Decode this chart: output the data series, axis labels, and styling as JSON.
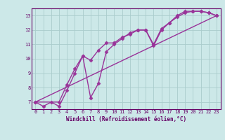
{
  "bg_color": "#cce8e8",
  "grid_color": "#aacccc",
  "line_color": "#993399",
  "xlabel": "Windchill (Refroidissement éolien,°C)",
  "xlim": [
    -0.5,
    23.5
  ],
  "ylim": [
    6.5,
    13.5
  ],
  "xticks": [
    0,
    1,
    2,
    3,
    4,
    5,
    6,
    7,
    8,
    9,
    10,
    11,
    12,
    13,
    14,
    15,
    16,
    17,
    18,
    19,
    20,
    21,
    22,
    23
  ],
  "yticks": [
    7,
    8,
    9,
    10,
    11,
    12,
    13
  ],
  "line1_x": [
    0,
    1,
    2,
    3,
    4,
    5,
    6,
    7,
    8,
    9,
    10,
    11,
    12,
    13,
    14,
    15,
    16,
    17,
    18,
    19,
    20,
    21,
    22,
    23
  ],
  "line1_y": [
    7.0,
    6.7,
    7.0,
    6.7,
    7.8,
    9.0,
    10.2,
    9.9,
    10.6,
    11.1,
    11.1,
    11.5,
    11.7,
    12.0,
    12.0,
    10.9,
    12.0,
    12.5,
    12.9,
    13.2,
    13.3,
    13.3,
    13.2,
    13.0
  ],
  "line2_x": [
    0,
    3,
    4,
    5,
    6,
    7,
    8,
    9,
    10,
    11,
    12,
    13,
    14,
    15,
    16,
    17,
    18,
    19,
    20,
    21,
    22,
    23
  ],
  "line2_y": [
    7.0,
    7.0,
    8.2,
    9.3,
    10.2,
    7.3,
    8.3,
    10.5,
    11.0,
    11.4,
    11.8,
    12.0,
    12.0,
    11.0,
    12.1,
    12.5,
    13.0,
    13.3,
    13.3,
    13.3,
    13.2,
    13.0
  ],
  "line3_x": [
    0,
    23
  ],
  "line3_y": [
    7.0,
    13.0
  ],
  "marker": "D",
  "markersize": 2.5,
  "linewidth": 1.0,
  "tick_fontsize": 5,
  "xlabel_fontsize": 5.5
}
